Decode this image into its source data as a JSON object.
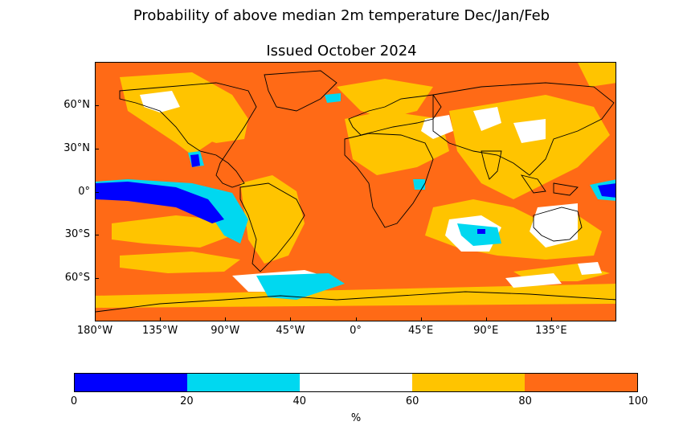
{
  "title": "Probability of above median 2m temperature Dec/Jan/Feb",
  "subtitle": "Issued October 2024",
  "map": {
    "latitude_labels": [
      "60°N",
      "30°N",
      "0°",
      "30°S",
      "60°S"
    ],
    "longitude_labels": [
      "180°W",
      "135°W",
      "90°W",
      "45°W",
      "0°",
      "45°E",
      "90°E",
      "135°E"
    ],
    "lat_values": [
      60,
      30,
      0,
      -30,
      -60
    ],
    "lon_values": [
      -180,
      -135,
      -90,
      -45,
      0,
      45,
      90,
      135
    ],
    "lat_range": [
      -90,
      90
    ],
    "lon_range": [
      -180,
      180
    ]
  },
  "colorbar": {
    "label": "%",
    "ticks": [
      "0",
      "20",
      "40",
      "60",
      "80",
      "100"
    ],
    "bins": [
      {
        "range": [
          0,
          20
        ],
        "color": "#0000ff"
      },
      {
        "range": [
          20,
          40
        ],
        "color": "#00d8f0"
      },
      {
        "range": [
          40,
          60
        ],
        "color": "#ffffff"
      },
      {
        "range": [
          60,
          80
        ],
        "color": "#ffc400"
      },
      {
        "range": [
          80,
          100
        ],
        "color": "#ff6a16"
      }
    ]
  }
}
